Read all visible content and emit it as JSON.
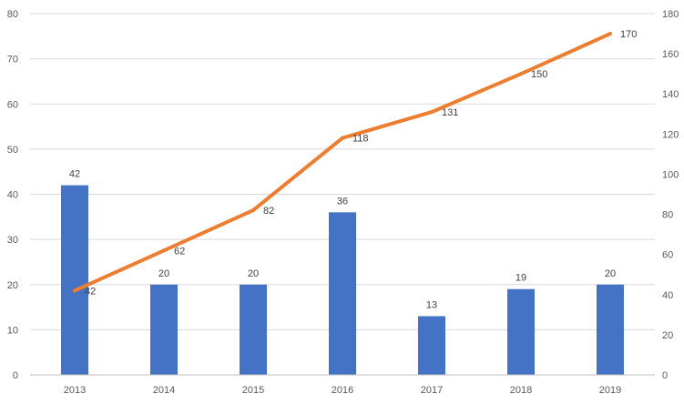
{
  "chart_data": {
    "type": "bar",
    "title": "",
    "xlabel": "",
    "ylabel": "",
    "categories": [
      "2013",
      "2014",
      "2015",
      "2016",
      "2017",
      "2018",
      "2019"
    ],
    "series": [
      {
        "type": "bar",
        "axis": "left",
        "color": "#4472c4",
        "values": [
          42,
          20,
          20,
          36,
          13,
          19,
          20
        ]
      },
      {
        "type": "line",
        "axis": "right",
        "color": "#ed7d31",
        "values": [
          42,
          62,
          82,
          118,
          131,
          150,
          170
        ]
      }
    ],
    "ylim": [
      0,
      80
    ],
    "yticks": [
      "0",
      "10",
      "20",
      "30",
      "40",
      "50",
      "60",
      "70",
      "80"
    ],
    "y2lim": [
      0,
      180
    ],
    "y2ticks": [
      "0",
      "20",
      "40",
      "60",
      "80",
      "100",
      "120",
      "140",
      "160",
      "180"
    ],
    "grid": true,
    "legend": "none"
  }
}
